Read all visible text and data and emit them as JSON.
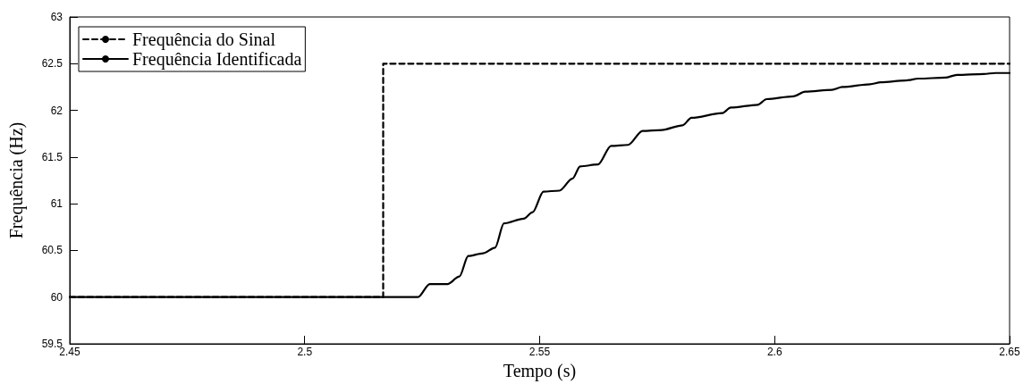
{
  "chart_data": {
    "type": "line",
    "xlabel": "Tempo (s)",
    "ylabel": "Frequência (Hz)",
    "xlim": [
      2.45,
      2.65
    ],
    "xticks": [
      2.45,
      2.5,
      2.55,
      2.6,
      2.65
    ],
    "ylim": [
      59.5,
      63
    ],
    "yticks": [
      59.5,
      60,
      60.5,
      61,
      61.5,
      62,
      62.5,
      63
    ],
    "grid": false,
    "legend": "top left",
    "marker": "none",
    "series": [
      {
        "name": "Frequência do Sinal",
        "color": "#000000",
        "line_style": "dashed",
        "x": [
          2.45,
          2.5167,
          2.5167,
          2.65
        ],
        "values": [
          60,
          60,
          62.5,
          62.5
        ]
      },
      {
        "name": "Frequência Identificada",
        "color": "#000000",
        "line_style": "solid",
        "x": [
          2.45,
          2.5,
          2.5241,
          2.5266,
          2.5304,
          2.5329,
          2.5348,
          2.538,
          2.5405,
          2.5424,
          2.5466,
          2.5485,
          2.5508,
          2.5542,
          2.557,
          2.5586,
          2.5624,
          2.5652,
          2.5688,
          2.5719,
          2.576,
          2.5804,
          2.5823,
          2.5888,
          2.5907,
          2.5964,
          2.5983,
          2.604,
          2.6065,
          2.6122,
          2.6144,
          2.6203,
          2.6226,
          2.6279,
          2.6306,
          2.6363,
          2.6388,
          2.6445,
          2.647,
          2.65
        ],
        "values": [
          60,
          60,
          60,
          60.14,
          60.14,
          60.22,
          60.44,
          60.47,
          60.53,
          60.79,
          60.84,
          60.91,
          61.13,
          61.14,
          61.27,
          61.4,
          61.42,
          61.62,
          61.63,
          61.78,
          61.79,
          61.84,
          61.92,
          61.97,
          62.03,
          62.06,
          62.12,
          62.15,
          62.2,
          62.22,
          62.25,
          62.28,
          62.3,
          62.32,
          62.34,
          62.35,
          62.38,
          62.39,
          62.4,
          62.4
        ]
      }
    ]
  }
}
